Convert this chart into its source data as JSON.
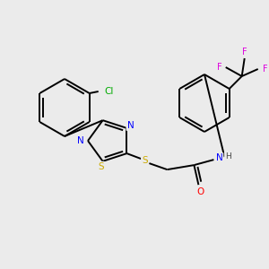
{
  "background_color": "#ebebeb",
  "bond_color": "#000000",
  "atom_colors": {
    "N": "#0000ff",
    "S": "#ccaa00",
    "O": "#ff0000",
    "Cl": "#00aa00",
    "F": "#dd00dd",
    "H": "#444444",
    "C": "#000000"
  },
  "figsize": [
    3.0,
    3.0
  ],
  "dpi": 100,
  "lw": 1.4
}
